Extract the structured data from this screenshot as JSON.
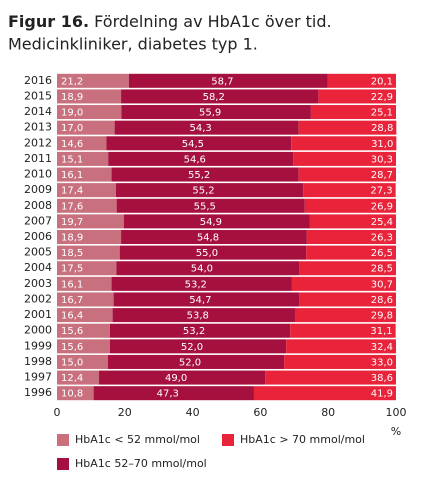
{
  "chart_data": {
    "type": "stacked-bar-horizontal",
    "figure_label": "Figur 16.",
    "title": "Fördelning av HbA1c över tid.",
    "subtitle": "Medicinkliniker, diabetes typ 1.",
    "xlabel": "%",
    "categories": [
      "2016",
      "2015",
      "2014",
      "2013",
      "2012",
      "2011",
      "2010",
      "2009",
      "2008",
      "2007",
      "2006",
      "2005",
      "2004",
      "2003",
      "2002",
      "2001",
      "2000",
      "1999",
      "1998",
      "1997",
      "1996"
    ],
    "series": [
      {
        "name": "HbA1c < 52 mmol/mol",
        "color": "#c8707e",
        "values": [
          21.2,
          18.9,
          19.0,
          17.0,
          14.6,
          15.1,
          16.1,
          17.4,
          17.6,
          19.7,
          18.9,
          18.5,
          17.5,
          16.1,
          16.7,
          16.4,
          15.6,
          15.6,
          15.0,
          12.4,
          10.8
        ],
        "value_labels": [
          "21,2",
          "18,9",
          "19,0",
          "17,0",
          "14,6",
          "15,1",
          "16,1",
          "17,4",
          "17,6",
          "19,7",
          "18,9",
          "18,5",
          "17,5",
          "16,1",
          "16,7",
          "16,4",
          "15,6",
          "15,6",
          "15,0",
          "12,4",
          "10,8"
        ]
      },
      {
        "name": "HbA1c 52–70 mmol/mol",
        "color": "#a5103f",
        "values": [
          58.7,
          58.2,
          55.9,
          54.3,
          54.5,
          54.6,
          55.2,
          55.2,
          55.5,
          54.9,
          54.8,
          55.0,
          54.0,
          53.2,
          54.7,
          53.8,
          53.2,
          52.0,
          52.0,
          49.0,
          47.3
        ],
        "value_labels": [
          "58,7",
          "58,2",
          "55,9",
          "54,3",
          "54,5",
          "54,6",
          "55,2",
          "55,2",
          "55,5",
          "54,9",
          "54,8",
          "55,0",
          "54,0",
          "53,2",
          "54,7",
          "53,8",
          "53,2",
          "52,0",
          "52,0",
          "49,0",
          "47,3"
        ]
      },
      {
        "name": "HbA1c > 70 mmol/mol",
        "color": "#e8233a",
        "values": [
          20.1,
          22.9,
          25.1,
          28.8,
          31.0,
          30.3,
          28.7,
          27.3,
          26.9,
          25.4,
          26.3,
          26.5,
          28.5,
          30.7,
          28.6,
          29.8,
          31.1,
          32.4,
          33.0,
          38.6,
          41.9
        ],
        "value_labels": [
          "20,1",
          "22,9",
          "25,1",
          "28,8",
          "31,0",
          "30,3",
          "28,7",
          "27,3",
          "26,9",
          "25,4",
          "26,3",
          "26,5",
          "28,5",
          "30,7",
          "28,6",
          "29,8",
          "31,1",
          "32,4",
          "33,0",
          "38,6",
          "41,9"
        ]
      }
    ],
    "xlim": [
      0,
      100
    ],
    "xticks": [
      0,
      20,
      40,
      60,
      80,
      100
    ]
  }
}
